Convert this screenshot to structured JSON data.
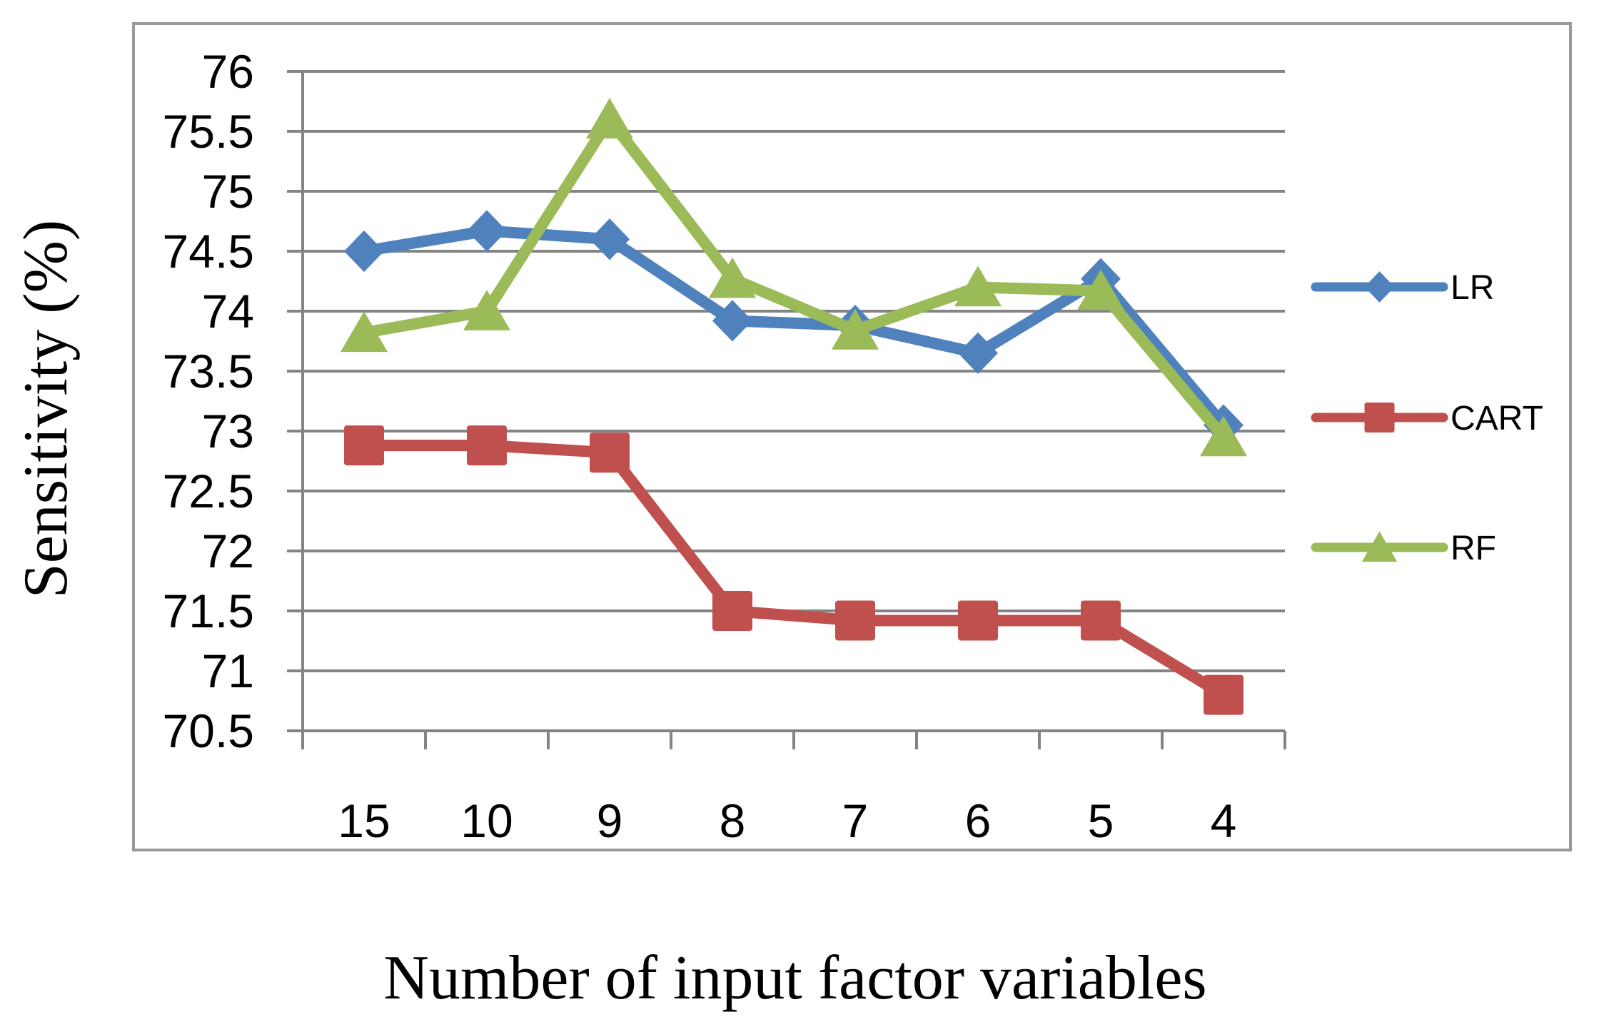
{
  "chart_data": {
    "type": "line",
    "title": "",
    "xlabel": "Number of input factor variables",
    "ylabel": "Sensitivity (%)",
    "categories": [
      "15",
      "10",
      "9",
      "8",
      "7",
      "6",
      "5",
      "4"
    ],
    "ylim": [
      70.5,
      76
    ],
    "ytick_step": 0.5,
    "ytick_labels": [
      "76",
      "75.5",
      "75",
      "74.5",
      "74",
      "73.5",
      "73",
      "72.5",
      "72",
      "71.5",
      "71",
      "70.5"
    ],
    "grid": true,
    "legend_position": "right",
    "series": [
      {
        "name": "LR",
        "marker": "diamond",
        "color": "#4F81BD",
        "values": [
          74.5,
          74.67,
          74.6,
          73.92,
          73.88,
          73.65,
          74.27,
          73.05
        ]
      },
      {
        "name": "CART",
        "marker": "square",
        "color": "#C0504D",
        "values": [
          72.88,
          72.88,
          72.82,
          71.5,
          71.42,
          71.42,
          71.42,
          70.8
        ]
      },
      {
        "name": "RF",
        "marker": "triangle",
        "color": "#9BBB59",
        "values": [
          73.82,
          74.0,
          75.6,
          74.27,
          73.84,
          74.2,
          74.17,
          72.95
        ]
      }
    ],
    "colors": {
      "gridline": "#848484",
      "axis_line": "#848484",
      "figure_border": "#999999",
      "text": "#000000",
      "background": "#ffffff"
    }
  }
}
